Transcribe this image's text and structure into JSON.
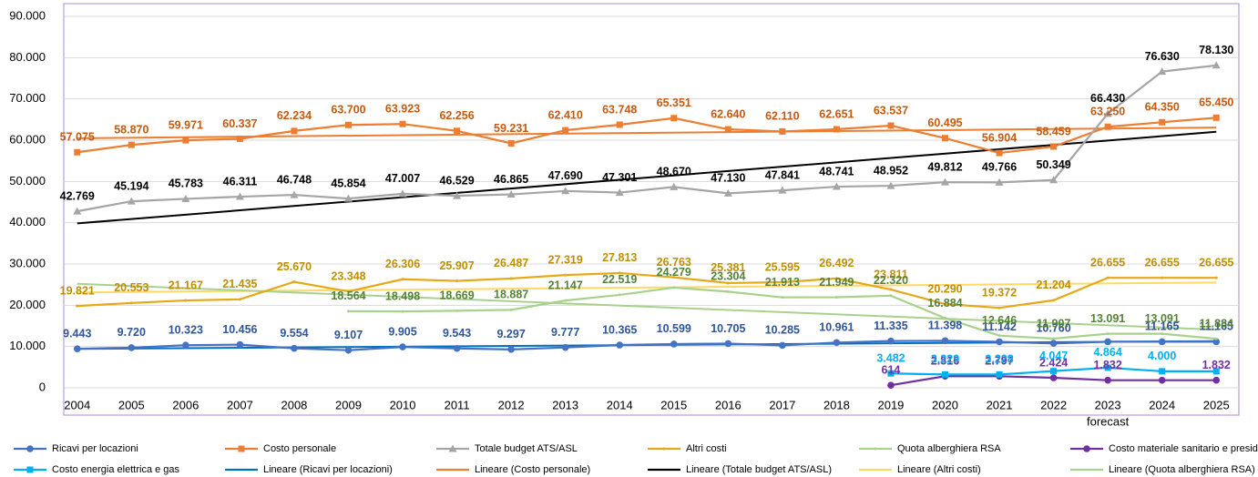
{
  "chart_data": {
    "type": "line",
    "categories": [
      "2004",
      "2005",
      "2006",
      "2007",
      "2008",
      "2009",
      "2010",
      "2011",
      "2012",
      "2013",
      "2014",
      "2015",
      "2016",
      "2017",
      "2018",
      "2019",
      "2020",
      "2021",
      "2022",
      "2023",
      "2024",
      "2025"
    ],
    "annotation": "forecast",
    "ylim": [
      0,
      90000
    ],
    "yticks": [
      0,
      {
        "value": 10000,
        "label": "10.000"
      },
      {
        "value": 20000,
        "label": "20.000"
      },
      {
        "value": 30000,
        "label": "30.000"
      },
      {
        "value": 40000,
        "label": "40.000"
      },
      {
        "value": 50000,
        "label": "50.000"
      },
      {
        "value": 60000,
        "label": "60.000"
      },
      {
        "value": 70000,
        "label": "70.000"
      },
      {
        "value": 80000,
        "label": "80.000"
      },
      {
        "value": 90000,
        "label": "90.000"
      }
    ],
    "grid": true,
    "legend": "bottom",
    "series": [
      {
        "name": "Ricavi per locazioni",
        "color": "#4472c4",
        "label_color": "#2f5597",
        "marker": "circle",
        "values": [
          9443,
          9720,
          10323,
          10456,
          9554,
          9107,
          9905,
          9543,
          9297,
          9777,
          10365,
          10599,
          10705,
          10285,
          10961,
          11335,
          11398,
          11142,
          10760,
          11165,
          11165,
          11165
        ],
        "value_labels": [
          "9.443",
          "9.720",
          "10.323",
          "10.456",
          "9.554",
          "9.107",
          "9.905",
          "9.543",
          "9.297",
          "9.777",
          "10.365",
          "10.599",
          "10.705",
          "10.285",
          "10.961",
          "11.335",
          "11.398",
          "11.142",
          "10.760",
          null,
          "11.165",
          "11.165"
        ]
      },
      {
        "name": "Costo personale",
        "color": "#ed7d31",
        "label_color": "#c55a11",
        "marker": "square",
        "values": [
          57075,
          58870,
          59971,
          60337,
          62234,
          63700,
          63923,
          62256,
          59231,
          62410,
          63748,
          65351,
          62640,
          62110,
          62651,
          63537,
          60495,
          56904,
          58459,
          63250,
          64350,
          65450
        ],
        "value_labels": [
          "57.075",
          "58.870",
          "59.971",
          "60.337",
          "62.234",
          "63.700",
          "63.923",
          "62.256",
          "59.231",
          "62.410",
          "63.748",
          "65.351",
          "62.640",
          "62.110",
          "62.651",
          "63.537",
          "60.495",
          "56.904",
          "58.459",
          "63.250",
          "64.350",
          "65.450"
        ]
      },
      {
        "name": "Totale budget ATS/ASL",
        "color": "#a5a5a5",
        "label_color": "#000000",
        "marker": "triangle",
        "values": [
          42769,
          45194,
          45783,
          46311,
          46748,
          45854,
          47007,
          46529,
          46865,
          47690,
          47301,
          48670,
          47130,
          47841,
          48741,
          48952,
          49812,
          49766,
          50349,
          66430,
          76630,
          78130
        ],
        "value_labels": [
          "42.769",
          "45.194",
          "45.783",
          "46.311",
          "46.748",
          "45.854",
          "47.007",
          "46.529",
          "46.865",
          "47.690",
          "47.301",
          "48.670",
          "47.130",
          "47.841",
          "48.741",
          "48.952",
          "49.812",
          "49.766",
          "50.349",
          "66.430",
          "76.630",
          "78.130"
        ]
      },
      {
        "name": "Altri costi",
        "color": "#e6a817",
        "label_color": "#bf8f00",
        "marker": "none",
        "values": [
          19821,
          20553,
          21167,
          21435,
          25670,
          23348,
          26306,
          25907,
          26487,
          27319,
          27813,
          26763,
          25381,
          25595,
          26492,
          23811,
          20290,
          19372,
          21204,
          26655,
          26655,
          26655
        ],
        "value_labels": [
          "19.821",
          "20.553",
          "21.167",
          "21.435",
          "25.670",
          "23.348",
          "26.306",
          "25.907",
          "26.487",
          "27.319",
          "27.813",
          "26.763",
          "25.381",
          "25.595",
          "26.492",
          "23.811",
          "20.290",
          "19.372",
          "21.204",
          "26.655",
          "26.655",
          "26.655"
        ]
      },
      {
        "name": "Quota alberghiera RSA",
        "color": "#a9d18e",
        "label_color": "#548235",
        "marker": "none",
        "values": [
          null,
          null,
          null,
          null,
          null,
          18564,
          18498,
          18669,
          18887,
          21147,
          22519,
          24279,
          23304,
          21913,
          21949,
          22320,
          16884,
          12646,
          11907,
          13091,
          13091,
          11884
        ],
        "value_labels": [
          null,
          null,
          null,
          null,
          null,
          "18.564",
          "18.498",
          "18.669",
          "18.887",
          "21.147",
          "22.519",
          "24.279",
          "23.304",
          "21.913",
          "21.949",
          "22.320",
          "16.884",
          "12.646",
          "11.907",
          "13.091",
          "13.091",
          "11.884"
        ]
      },
      {
        "name": "Costo materiale sanitario e presidi",
        "color": "#7030a0",
        "label_color": "#7030a0",
        "marker": "circle",
        "values": [
          null,
          null,
          null,
          null,
          null,
          null,
          null,
          null,
          null,
          null,
          null,
          null,
          null,
          null,
          null,
          614,
          2816,
          2797,
          2424,
          1832,
          1832,
          1832
        ],
        "value_labels": [
          null,
          null,
          null,
          null,
          null,
          null,
          null,
          null,
          null,
          null,
          null,
          null,
          null,
          null,
          null,
          "614",
          "2.816",
          "2.797",
          "2.424",
          "1.832",
          null,
          "1.832"
        ]
      },
      {
        "name": "Costo energia elettrica e gas",
        "color": "#00b0f0",
        "label_color": "#00b0f0",
        "marker": "square",
        "values": [
          null,
          null,
          null,
          null,
          null,
          null,
          null,
          null,
          null,
          null,
          null,
          null,
          null,
          null,
          null,
          3482,
          3229,
          3228,
          4047,
          4864,
          4000,
          4000
        ],
        "value_labels": [
          null,
          null,
          null,
          null,
          null,
          null,
          null,
          null,
          null,
          null,
          null,
          null,
          null,
          null,
          null,
          "3.482",
          "3.229",
          "3.228",
          "4.047",
          "4.864",
          "4.000",
          null
        ]
      }
    ],
    "trendlines": [
      {
        "name": "Lineare (Ricavi per locazioni)",
        "color": "#0070c0",
        "series": 0
      },
      {
        "name": "Lineare (Costo personale)",
        "color": "#ed7d31",
        "series": 1
      },
      {
        "name": "Lineare (Totale budget ATS/ASL)",
        "color": "#000000",
        "series": 2
      },
      {
        "name": "Lineare (Altri costi)",
        "color": "#ffd966",
        "series": 3
      },
      {
        "name": "Lineare (Quota alberghiera RSA)",
        "color": "#a9d18e",
        "series": 4
      }
    ]
  }
}
